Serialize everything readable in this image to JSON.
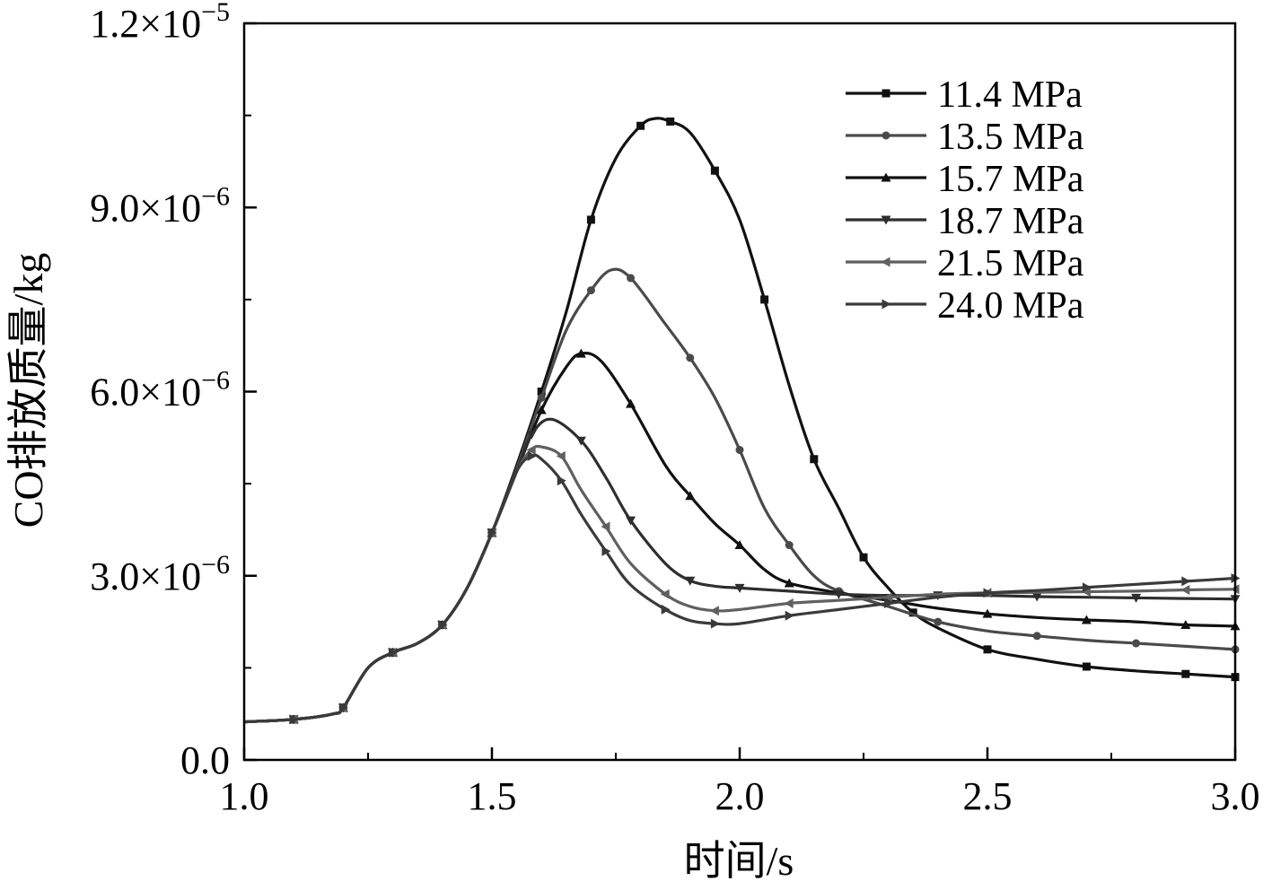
{
  "chart_data": {
    "type": "line",
    "xlabel": "时间/s",
    "ylabel": "CO排放质量/kg",
    "xlim": [
      1.0,
      3.0
    ],
    "ylim": [
      0,
      1.2e-05
    ],
    "x_ticks": [
      1.0,
      1.5,
      2.0,
      2.5,
      3.0
    ],
    "x_tick_labels": [
      "1.0",
      "1.5",
      "2.0",
      "2.5",
      "3.0"
    ],
    "y_ticks": [
      0,
      3e-06,
      6e-06,
      9e-06,
      1.2e-05
    ],
    "y_tick_labels": [
      {
        "mantissa": "0.0",
        "exponent": ""
      },
      {
        "mantissa": "3.0×10",
        "exponent": "−6"
      },
      {
        "mantissa": "6.0×10",
        "exponent": "−6"
      },
      {
        "mantissa": "9.0×10",
        "exponent": "−6"
      },
      {
        "mantissa": "1.2×10",
        "exponent": "−5"
      }
    ],
    "grid": false,
    "legend_position": "top-right",
    "series": [
      {
        "name": "11.4 MPa",
        "color": "#111111",
        "marker": "square",
        "points": [
          [
            1.0,
            6.2e-07
          ],
          [
            1.1,
            6.6e-07
          ],
          [
            1.18,
            7.5e-07
          ],
          [
            1.2,
            8.5e-07
          ],
          [
            1.25,
            1.5e-06
          ],
          [
            1.3,
            1.75e-06
          ],
          [
            1.35,
            1.9e-06
          ],
          [
            1.4,
            2.2e-06
          ],
          [
            1.45,
            2.8e-06
          ],
          [
            1.5,
            3.7e-06
          ],
          [
            1.55,
            4.8e-06
          ],
          [
            1.6,
            6e-06
          ],
          [
            1.65,
            7.3e-06
          ],
          [
            1.7,
            8.8e-06
          ],
          [
            1.75,
            9.8e-06
          ],
          [
            1.8,
            1.033e-05
          ],
          [
            1.83,
            1.045e-05
          ],
          [
            1.86,
            1.04e-05
          ],
          [
            1.9,
            1.022e-05
          ],
          [
            1.95,
            9.6e-06
          ],
          [
            2.0,
            8.8e-06
          ],
          [
            2.05,
            7.5e-06
          ],
          [
            2.1,
            6.1e-06
          ],
          [
            2.15,
            4.9e-06
          ],
          [
            2.2,
            4.1e-06
          ],
          [
            2.25,
            3.3e-06
          ],
          [
            2.3,
            2.8e-06
          ],
          [
            2.35,
            2.4e-06
          ],
          [
            2.4,
            2.15e-06
          ],
          [
            2.5,
            1.8e-06
          ],
          [
            2.6,
            1.64e-06
          ],
          [
            2.7,
            1.52e-06
          ],
          [
            2.8,
            1.45e-06
          ],
          [
            2.9,
            1.4e-06
          ],
          [
            3.0,
            1.35e-06
          ]
        ]
      },
      {
        "name": "13.5 MPa",
        "color": "#4a4a4a",
        "marker": "circle",
        "points": [
          [
            1.0,
            6.2e-07
          ],
          [
            1.1,
            6.6e-07
          ],
          [
            1.18,
            7.5e-07
          ],
          [
            1.2,
            8.5e-07
          ],
          [
            1.25,
            1.5e-06
          ],
          [
            1.3,
            1.75e-06
          ],
          [
            1.35,
            1.9e-06
          ],
          [
            1.4,
            2.2e-06
          ],
          [
            1.45,
            2.8e-06
          ],
          [
            1.5,
            3.7e-06
          ],
          [
            1.55,
            4.75e-06
          ],
          [
            1.6,
            5.9e-06
          ],
          [
            1.65,
            7e-06
          ],
          [
            1.7,
            7.65e-06
          ],
          [
            1.74,
            7.98e-06
          ],
          [
            1.78,
            7.85e-06
          ],
          [
            1.85,
            7.1e-06
          ],
          [
            1.9,
            6.55e-06
          ],
          [
            1.95,
            5.9e-06
          ],
          [
            2.0,
            5.05e-06
          ],
          [
            2.05,
            4.1e-06
          ],
          [
            2.1,
            3.5e-06
          ],
          [
            2.15,
            3e-06
          ],
          [
            2.2,
            2.75e-06
          ],
          [
            2.3,
            2.5e-06
          ],
          [
            2.4,
            2.25e-06
          ],
          [
            2.5,
            2.1e-06
          ],
          [
            2.6,
            2.02e-06
          ],
          [
            2.7,
            1.95e-06
          ],
          [
            2.8,
            1.9e-06
          ],
          [
            2.9,
            1.85e-06
          ],
          [
            3.0,
            1.8e-06
          ]
        ]
      },
      {
        "name": "15.7 MPa",
        "color": "#111111",
        "marker": "triangle-up",
        "points": [
          [
            1.0,
            6.2e-07
          ],
          [
            1.1,
            6.6e-07
          ],
          [
            1.18,
            7.5e-07
          ],
          [
            1.2,
            8.5e-07
          ],
          [
            1.25,
            1.5e-06
          ],
          [
            1.3,
            1.75e-06
          ],
          [
            1.35,
            1.9e-06
          ],
          [
            1.4,
            2.2e-06
          ],
          [
            1.45,
            2.8e-06
          ],
          [
            1.5,
            3.7e-06
          ],
          [
            1.55,
            4.7e-06
          ],
          [
            1.6,
            5.7e-06
          ],
          [
            1.65,
            6.4e-06
          ],
          [
            1.68,
            6.62e-06
          ],
          [
            1.72,
            6.5e-06
          ],
          [
            1.78,
            5.8e-06
          ],
          [
            1.85,
            4.8e-06
          ],
          [
            1.9,
            4.3e-06
          ],
          [
            1.95,
            3.85e-06
          ],
          [
            2.0,
            3.5e-06
          ],
          [
            2.05,
            3.1e-06
          ],
          [
            2.1,
            2.88e-06
          ],
          [
            2.2,
            2.72e-06
          ],
          [
            2.3,
            2.6e-06
          ],
          [
            2.4,
            2.47e-06
          ],
          [
            2.5,
            2.38e-06
          ],
          [
            2.6,
            2.32e-06
          ],
          [
            2.7,
            2.28e-06
          ],
          [
            2.8,
            2.25e-06
          ],
          [
            2.9,
            2.2e-06
          ],
          [
            3.0,
            2.18e-06
          ]
        ]
      },
      {
        "name": "18.7 MPa",
        "color": "#2e2e2e",
        "marker": "triangle-down",
        "points": [
          [
            1.0,
            6.2e-07
          ],
          [
            1.1,
            6.6e-07
          ],
          [
            1.18,
            7.5e-07
          ],
          [
            1.2,
            8.5e-07
          ],
          [
            1.25,
            1.5e-06
          ],
          [
            1.3,
            1.75e-06
          ],
          [
            1.35,
            1.9e-06
          ],
          [
            1.4,
            2.2e-06
          ],
          [
            1.45,
            2.8e-06
          ],
          [
            1.5,
            3.7e-06
          ],
          [
            1.55,
            4.7e-06
          ],
          [
            1.58,
            5.3e-06
          ],
          [
            1.62,
            5.55e-06
          ],
          [
            1.68,
            5.2e-06
          ],
          [
            1.73,
            4.6e-06
          ],
          [
            1.78,
            3.9e-06
          ],
          [
            1.85,
            3.2e-06
          ],
          [
            1.9,
            2.92e-06
          ],
          [
            1.95,
            2.83e-06
          ],
          [
            2.0,
            2.8e-06
          ],
          [
            2.1,
            2.75e-06
          ],
          [
            2.2,
            2.7e-06
          ],
          [
            2.3,
            2.68e-06
          ],
          [
            2.4,
            2.68e-06
          ],
          [
            2.5,
            2.68e-06
          ],
          [
            2.6,
            2.66e-06
          ],
          [
            2.7,
            2.65e-06
          ],
          [
            2.8,
            2.64e-06
          ],
          [
            2.9,
            2.63e-06
          ],
          [
            3.0,
            2.62e-06
          ]
        ]
      },
      {
        "name": "21.5 MPa",
        "color": "#606060",
        "marker": "triangle-left",
        "points": [
          [
            1.0,
            6.2e-07
          ],
          [
            1.1,
            6.6e-07
          ],
          [
            1.18,
            7.5e-07
          ],
          [
            1.2,
            8.5e-07
          ],
          [
            1.25,
            1.5e-06
          ],
          [
            1.3,
            1.75e-06
          ],
          [
            1.35,
            1.9e-06
          ],
          [
            1.4,
            2.2e-06
          ],
          [
            1.45,
            2.8e-06
          ],
          [
            1.5,
            3.7e-06
          ],
          [
            1.55,
            4.7e-06
          ],
          [
            1.58,
            5.05e-06
          ],
          [
            1.6,
            5.1e-06
          ],
          [
            1.64,
            4.95e-06
          ],
          [
            1.68,
            4.4e-06
          ],
          [
            1.73,
            3.8e-06
          ],
          [
            1.78,
            3.2e-06
          ],
          [
            1.85,
            2.7e-06
          ],
          [
            1.9,
            2.5e-06
          ],
          [
            1.95,
            2.43e-06
          ],
          [
            2.0,
            2.45e-06
          ],
          [
            2.1,
            2.55e-06
          ],
          [
            2.2,
            2.6e-06
          ],
          [
            2.3,
            2.65e-06
          ],
          [
            2.4,
            2.7e-06
          ],
          [
            2.5,
            2.72e-06
          ],
          [
            2.6,
            2.73e-06
          ],
          [
            2.7,
            2.74e-06
          ],
          [
            2.8,
            2.75e-06
          ],
          [
            2.9,
            2.77e-06
          ],
          [
            3.0,
            2.78e-06
          ]
        ]
      },
      {
        "name": "24.0 MPa",
        "color": "#3a3a3a",
        "marker": "triangle-right",
        "points": [
          [
            1.0,
            6.2e-07
          ],
          [
            1.1,
            6.6e-07
          ],
          [
            1.18,
            7.5e-07
          ],
          [
            1.2,
            8.5e-07
          ],
          [
            1.25,
            1.5e-06
          ],
          [
            1.3,
            1.75e-06
          ],
          [
            1.35,
            1.9e-06
          ],
          [
            1.4,
            2.2e-06
          ],
          [
            1.45,
            2.8e-06
          ],
          [
            1.5,
            3.7e-06
          ],
          [
            1.55,
            4.7e-06
          ],
          [
            1.58,
            4.95e-06
          ],
          [
            1.6,
            4.9e-06
          ],
          [
            1.64,
            4.55e-06
          ],
          [
            1.68,
            4e-06
          ],
          [
            1.73,
            3.4e-06
          ],
          [
            1.78,
            2.85e-06
          ],
          [
            1.85,
            2.45e-06
          ],
          [
            1.9,
            2.27e-06
          ],
          [
            1.95,
            2.22e-06
          ],
          [
            2.0,
            2.22e-06
          ],
          [
            2.1,
            2.35e-06
          ],
          [
            2.2,
            2.45e-06
          ],
          [
            2.3,
            2.55e-06
          ],
          [
            2.4,
            2.65e-06
          ],
          [
            2.5,
            2.72e-06
          ],
          [
            2.6,
            2.76e-06
          ],
          [
            2.7,
            2.81e-06
          ],
          [
            2.8,
            2.86e-06
          ],
          [
            2.9,
            2.91e-06
          ],
          [
            3.0,
            2.96e-06
          ]
        ]
      }
    ]
  }
}
